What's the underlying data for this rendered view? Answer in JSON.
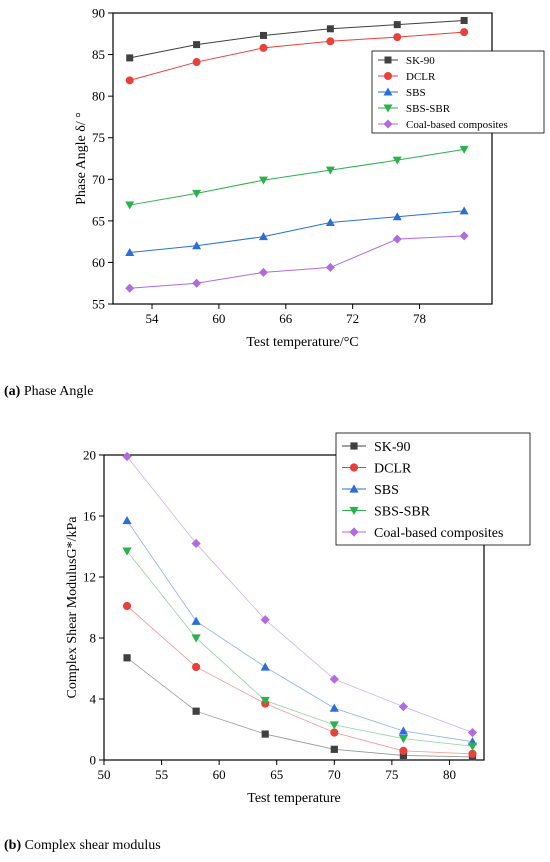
{
  "chart_data": [
    {
      "type": "line",
      "title": "",
      "xlabel": "Test temperature/°C",
      "ylabel": "Phase Angle δ/ °",
      "xlim": [
        50.5,
        84.5
      ],
      "ylim": [
        55,
        90
      ],
      "xticks": [
        54,
        60,
        66,
        72,
        78
      ],
      "yticks": [
        55,
        60,
        65,
        70,
        75,
        80,
        85,
        90
      ],
      "grid": false,
      "legend_position": "upper-right",
      "x": [
        52,
        58,
        64,
        70,
        76,
        82
      ],
      "series": [
        {
          "name": "SK-90",
          "color": "#404040",
          "marker": "square",
          "values": [
            84.6,
            86.2,
            87.3,
            88.1,
            88.6,
            89.1
          ]
        },
        {
          "name": "DCLR",
          "color": "#e8403a",
          "marker": "circle",
          "values": [
            81.9,
            84.1,
            85.8,
            86.6,
            87.1,
            87.7
          ]
        },
        {
          "name": "SBS",
          "color": "#2a6fd6",
          "marker": "triangle-up",
          "values": [
            61.2,
            62.0,
            63.1,
            64.8,
            65.5,
            66.2
          ]
        },
        {
          "name": "SBS-SBR",
          "color": "#2bb24c",
          "marker": "triangle-down",
          "values": [
            66.9,
            68.3,
            69.9,
            71.1,
            72.3,
            73.6
          ]
        },
        {
          "name": "Coal-based composites",
          "color": "#b26ae0",
          "marker": "diamond",
          "values": [
            56.9,
            57.5,
            58.8,
            59.4,
            62.8,
            63.2
          ]
        }
      ]
    },
    {
      "type": "line",
      "title": "",
      "xlabel": "Test temperature",
      "ylabel": "Complex Shear ModulusG*/kPa",
      "xlim": [
        50,
        83
      ],
      "ylim": [
        0,
        20
      ],
      "xticks": [
        50,
        55,
        60,
        65,
        70,
        75,
        80
      ],
      "yticks": [
        0,
        4,
        8,
        12,
        16,
        20
      ],
      "grid": false,
      "legend_position": "upper-right",
      "x": [
        52,
        58,
        64,
        70,
        76,
        82
      ],
      "series": [
        {
          "name": "SK-90",
          "color": "#404040",
          "marker": "square",
          "values": [
            6.7,
            3.2,
            1.7,
            0.7,
            0.3,
            0.2
          ]
        },
        {
          "name": "DCLR",
          "color": "#e8403a",
          "marker": "circle",
          "values": [
            10.1,
            6.1,
            3.7,
            1.8,
            0.6,
            0.4
          ]
        },
        {
          "name": "SBS",
          "color": "#2a6fd6",
          "marker": "triangle-up",
          "values": [
            15.7,
            9.1,
            6.1,
            3.4,
            1.9,
            1.2
          ]
        },
        {
          "name": "SBS-SBR",
          "color": "#2bb24c",
          "marker": "triangle-down",
          "values": [
            13.7,
            8.0,
            3.9,
            2.3,
            1.4,
            0.9
          ]
        },
        {
          "name": "Coal-based composites",
          "color": "#b26ae0",
          "marker": "diamond",
          "values": [
            19.9,
            14.2,
            9.2,
            5.3,
            3.5,
            1.8
          ]
        }
      ]
    }
  ],
  "captions": {
    "a": {
      "tag": "(a)",
      "text": " Phase Angle"
    },
    "b": {
      "tag": "(b)",
      "text": " Complex shear modulus"
    }
  }
}
